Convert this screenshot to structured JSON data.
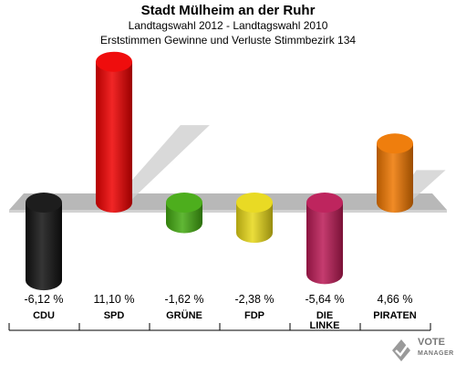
{
  "header": {
    "title": "Stadt Mülheim an der Ruhr",
    "subtitle": "Landtagswahl 2012 - Landtagswahl 2010",
    "subtitle2": "Erststimmen Gewinne und Verluste Stimmbezirk 134"
  },
  "logo": {
    "line1": "VOTE",
    "line2": "MANAGER",
    "icon": "ballot-check-icon"
  },
  "chart_data": {
    "type": "bar",
    "title": "Stadt Mülheim an der Ruhr",
    "subtitle": "Landtagswahl 2012 - Landtagswahl 2010 / Erststimmen Gewinne und Verluste Stimmbezirk 134",
    "categories": [
      "CDU",
      "SPD",
      "GRÜNE",
      "FDP",
      "DIE LINKE",
      "PIRATEN"
    ],
    "values": [
      -6.12,
      11.1,
      -1.62,
      -2.38,
      -5.64,
      4.66
    ],
    "labels": [
      "-6,12 %",
      "11,10 %",
      "-1,62 %",
      "-2,38 %",
      "-5,64 %",
      "4,66 %"
    ],
    "colors": [
      "#111111",
      "#ee0000",
      "#44aa11",
      "#e8d818",
      "#bb1a55",
      "#ee7700"
    ],
    "grid": false,
    "legend": "none"
  }
}
